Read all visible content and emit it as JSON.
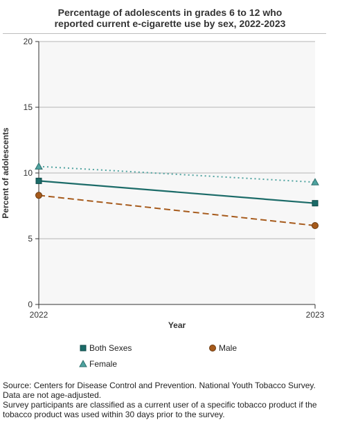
{
  "chart_data": {
    "type": "line",
    "title_lines": [
      "Percentage of adolescents in grades 6 to 12 who",
      "reported current e-cigarette use by sex, 2022-2023"
    ],
    "xlabel": "Year",
    "ylabel": "Percent of adolescents",
    "x": [
      "2022",
      "2023"
    ],
    "ylim": [
      0,
      20
    ],
    "yticks": [
      "0",
      "5",
      "10",
      "15",
      "20"
    ],
    "grid": true,
    "legend_position": "bottom",
    "series": [
      {
        "name": "Both Sexes",
        "values": [
          9.4,
          7.7
        ],
        "color": "#1b6b68",
        "marker": "square",
        "line": "solid"
      },
      {
        "name": "Male",
        "values": [
          8.3,
          6.0
        ],
        "color": "#a65a1b",
        "marker": "circle",
        "line": "dashed"
      },
      {
        "name": "Female",
        "values": [
          10.5,
          9.3
        ],
        "color": "#4fa3a0",
        "marker": "triangle",
        "line": "dotted"
      }
    ]
  },
  "notes": [
    "Source: Centers for Disease Control and Prevention. National Youth Tobacco Survey.",
    "Data are not age-adjusted.",
    "Survey participants are classified as a current user of a specific tobacco product if the tobacco product was used within 30 days prior to the survey."
  ]
}
